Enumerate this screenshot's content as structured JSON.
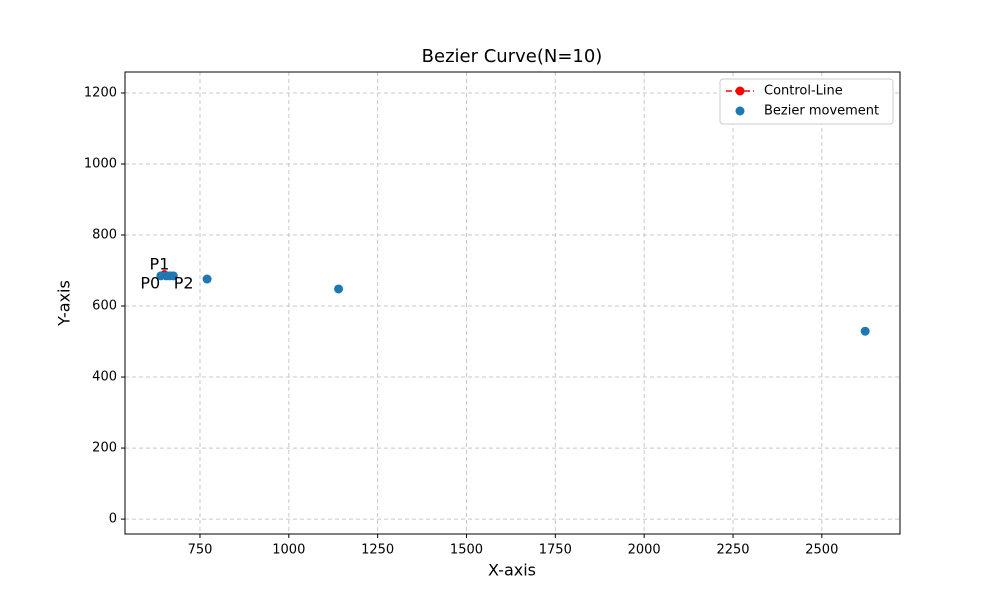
{
  "chart_data": {
    "type": "scatter",
    "title": "Bezier Curve(N=10)",
    "x_label": "X-axis",
    "y_label": "Y-axis",
    "xlim": [
      539,
      2720
    ],
    "ylim": [
      -42,
      1259
    ],
    "xticks": [
      750,
      1000,
      1250,
      1500,
      1750,
      2000,
      2250,
      2500
    ],
    "yticks": [
      0,
      200,
      400,
      600,
      800,
      1000,
      1200
    ],
    "grid": true,
    "legend": "upper right",
    "series": [
      {
        "name": "Control-Line",
        "color": "#ff0000",
        "kind": "line",
        "x": [
          640,
          650,
          675
        ],
        "values": [
          685,
          690,
          685
        ]
      },
      {
        "name": "Bezier movement",
        "color": "#1f77b4",
        "kind": "scatter",
        "x": [
          640,
          655,
          665,
          675,
          770,
          1140,
          2622
        ],
        "values": [
          685,
          685,
          685,
          685,
          676,
          648,
          529
        ]
      }
    ],
    "annotations": [
      {
        "text": "P0",
        "x": 610,
        "y": 662
      },
      {
        "text": "P1",
        "x": 636,
        "y": 715
      },
      {
        "text": "P2",
        "x": 704,
        "y": 662
      }
    ]
  }
}
